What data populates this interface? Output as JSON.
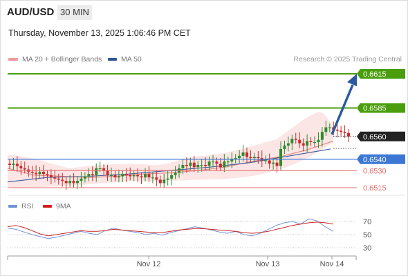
{
  "header": {
    "symbol": "AUD/USD",
    "timeframe": "30 MIN",
    "datetime": "Thursday, November 13, 2025 1:06:46 PM CET"
  },
  "legend": {
    "ma20_label": "MA 20 + Bollinger Bands",
    "ma50_label": "MA 50",
    "credit": "Research © 2025 Trading Central",
    "rsi_label": "RSI",
    "rsi_ma_label": "9MA"
  },
  "colors": {
    "resistance": "#4a9e0c",
    "support_blue": "#3d77d6",
    "support_red": "#e36c6c",
    "current": "#222222",
    "ma20": "#e58a8a",
    "ma50": "#3a5ea0",
    "band_fill": "#fbe0e0",
    "bull": "#2e8b2e",
    "bear": "#cc2a2a",
    "arrow": "#2b5b9e",
    "rsi": "#6f93d8",
    "rsi_ma": "#cc2222"
  },
  "levels": {
    "resistance_2": "0.6615",
    "resistance_1": "0.6585",
    "current": "0.6560",
    "pivot": "0.6540",
    "support_1": "0.6530",
    "support_2": "0.6515"
  },
  "x_axis": {
    "labels": [
      "Nov 12",
      "Nov 13",
      "Nov 14"
    ]
  },
  "rsi_axis": {
    "labels": [
      "70",
      "50",
      "30"
    ]
  },
  "chart_data": [
    {
      "type": "candlestick",
      "series": [
        {
          "name": "AUD/USD",
          "close": [
            0.6535,
            0.6536,
            0.6534,
            0.6532,
            0.6531,
            0.6529,
            0.6528,
            0.6527,
            0.6529,
            0.6527,
            0.6526,
            0.6524,
            0.6523,
            0.6522,
            0.6521,
            0.6519,
            0.6521,
            0.6519,
            0.6521,
            0.6523,
            0.6525,
            0.6527,
            0.6526,
            0.6532,
            0.6532,
            0.653,
            0.6526,
            0.6526,
            0.6524,
            0.6525,
            0.6527,
            0.6526,
            0.6525,
            0.6526,
            0.6525,
            0.6524,
            0.6527,
            0.6524,
            0.6524,
            0.6522,
            0.6519,
            0.6522,
            0.6523,
            0.6526,
            0.6528,
            0.6532,
            0.6535,
            0.6534,
            0.6537,
            0.6533,
            0.6535,
            0.6535,
            0.6534,
            0.6538,
            0.6538,
            0.6536,
            0.6533,
            0.6538,
            0.6538,
            0.654,
            0.6541,
            0.6543,
            0.6546,
            0.6542,
            0.6541,
            0.6542,
            0.6541,
            0.6539,
            0.6539,
            0.6536,
            0.6537,
            0.6534,
            0.6549,
            0.6552,
            0.6554,
            0.6558,
            0.6557,
            0.6554,
            0.6552,
            0.6556,
            0.6555,
            0.6555,
            0.6557,
            0.6564,
            0.6568,
            0.6568,
            0.6566,
            0.6565,
            0.6564,
            0.6563,
            0.656
          ]
        },
        {
          "name": "MA 20",
          "values": [
            0.6532,
            0.6526,
            0.6525,
            0.6524,
            0.6525,
            0.6527,
            0.6528,
            0.653,
            0.6533,
            0.6538,
            0.6542,
            0.6548,
            0.6556
          ]
        },
        {
          "name": "MA 50",
          "values": [
            0.652,
            0.6524,
            0.6525,
            0.6527,
            0.653,
            0.6533,
            0.6537,
            0.6543,
            0.6549
          ]
        }
      ],
      "levels": [
        0.6615,
        0.6585,
        0.656,
        0.654,
        0.653,
        0.6515
      ],
      "forecast_target": 0.6615,
      "x_ticks": [
        "Nov 12",
        "Nov 13",
        "Nov 14"
      ]
    },
    {
      "type": "line",
      "series": [
        {
          "name": "RSI",
          "values": [
            60,
            58,
            54,
            50,
            47,
            44,
            46,
            49,
            52,
            55,
            52,
            50,
            56,
            60,
            57,
            55,
            53,
            50,
            52,
            49,
            53,
            56,
            59,
            62,
            60,
            57,
            54,
            52,
            55,
            50,
            48,
            52,
            58,
            64,
            68,
            70,
            66,
            74,
            71,
            62,
            55
          ]
        },
        {
          "name": "9MA",
          "values": [
            62,
            64,
            61,
            56,
            51,
            48,
            50,
            52,
            54,
            56,
            55,
            55,
            56,
            58,
            57,
            56,
            55,
            54,
            53,
            53,
            55,
            57,
            58,
            59,
            59,
            58,
            57,
            56,
            55,
            53,
            52,
            53,
            55,
            58,
            61,
            64,
            66,
            68,
            69,
            68,
            66
          ]
        }
      ],
      "ylim": [
        30,
        70
      ]
    }
  ]
}
